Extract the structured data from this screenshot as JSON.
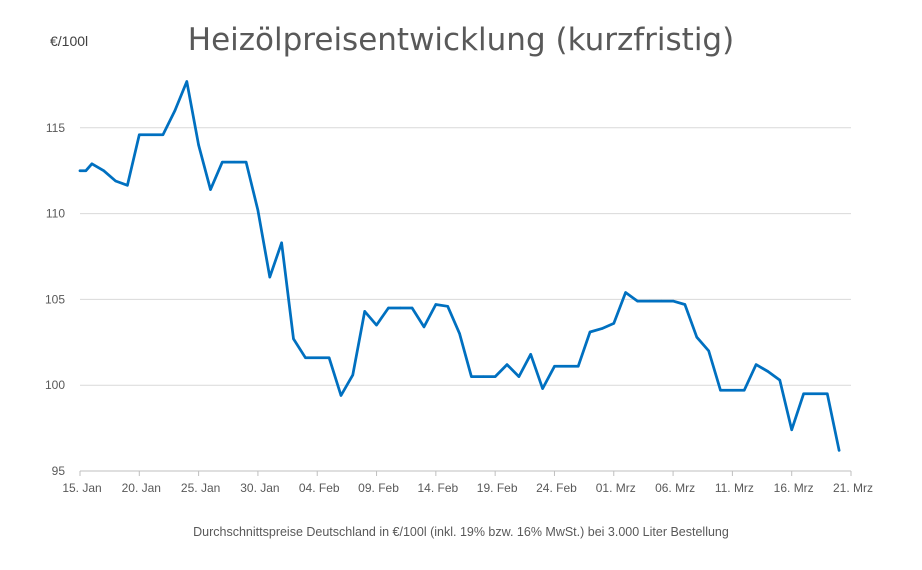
{
  "chart_data": {
    "type": "line",
    "title": "Heizölpreisentwicklung (kurzfristig)",
    "ylabel": "€/100l",
    "footnote": "Durchschnittspreise Deutschland in €/100l (inkl. 19% bzw. 16%  MwSt.) bei 3.000 Liter Bestellung",
    "ylim": [
      95,
      120
    ],
    "yticks": [
      95,
      100,
      105,
      110,
      115
    ],
    "grid": "horizontal",
    "line_color": "#0070C0",
    "x_ticks": [
      {
        "label": "15. Jan",
        "x": "2021-01-15"
      },
      {
        "label": "20. Jan",
        "x": "2021-01-20"
      },
      {
        "label": "25. Jan",
        "x": "2021-01-25"
      },
      {
        "label": "30. Jan",
        "x": "2021-01-30"
      },
      {
        "label": "04. Feb",
        "x": "2021-02-04"
      },
      {
        "label": "09. Feb",
        "x": "2021-02-09"
      },
      {
        "label": "14. Feb",
        "x": "2021-02-14"
      },
      {
        "label": "19. Feb",
        "x": "2021-02-19"
      },
      {
        "label": "24. Feb",
        "x": "2021-02-24"
      },
      {
        "label": "01. Mrz",
        "x": "2021-03-01"
      },
      {
        "label": "06. Mrz",
        "x": "2021-03-06"
      },
      {
        "label": "11. Mrz",
        "x": "2021-03-11"
      },
      {
        "label": "16. Mrz",
        "x": "2021-03-16"
      },
      {
        "label": "21. Mrz",
        "x": "2021-03-21"
      }
    ],
    "series": [
      {
        "points": [
          [
            "2021-01-15",
            112.5
          ],
          [
            "2021-01-15T12:00",
            112.5
          ],
          [
            "2021-01-16",
            112.9
          ],
          [
            "2021-01-17",
            112.5
          ],
          [
            "2021-01-18",
            111.9
          ],
          [
            "2021-01-19",
            111.65
          ],
          [
            "2021-01-20",
            114.6
          ],
          [
            "2021-01-21",
            114.6
          ],
          [
            "2021-01-22",
            114.6
          ],
          [
            "2021-01-23",
            116.0
          ],
          [
            "2021-01-24",
            117.7
          ],
          [
            "2021-01-25",
            114.0
          ],
          [
            "2021-01-26",
            111.4
          ],
          [
            "2021-01-27",
            113.0
          ],
          [
            "2021-01-28",
            113.0
          ],
          [
            "2021-01-29",
            113.0
          ],
          [
            "2021-01-30",
            110.2
          ],
          [
            "2021-01-31",
            106.3
          ],
          [
            "2021-02-01",
            108.3
          ],
          [
            "2021-02-02",
            102.7
          ],
          [
            "2021-02-03",
            101.6
          ],
          [
            "2021-02-04",
            101.6
          ],
          [
            "2021-02-05",
            101.6
          ],
          [
            "2021-02-06",
            99.4
          ],
          [
            "2021-02-07",
            100.6
          ],
          [
            "2021-02-08",
            104.3
          ],
          [
            "2021-02-09",
            103.5
          ],
          [
            "2021-02-10",
            104.5
          ],
          [
            "2021-02-11",
            104.5
          ],
          [
            "2021-02-12",
            104.5
          ],
          [
            "2021-02-13",
            103.4
          ],
          [
            "2021-02-14",
            104.7
          ],
          [
            "2021-02-15",
            104.6
          ],
          [
            "2021-02-16",
            103.0
          ],
          [
            "2021-02-17",
            100.5
          ],
          [
            "2021-02-18",
            100.5
          ],
          [
            "2021-02-19",
            100.5
          ],
          [
            "2021-02-20",
            101.2
          ],
          [
            "2021-02-21",
            100.5
          ],
          [
            "2021-02-22",
            101.8
          ],
          [
            "2021-02-23",
            99.8
          ],
          [
            "2021-02-24",
            101.1
          ],
          [
            "2021-02-25",
            101.1
          ],
          [
            "2021-02-26",
            101.1
          ],
          [
            "2021-02-27",
            103.1
          ],
          [
            "2021-02-28",
            103.3
          ],
          [
            "2021-03-01",
            103.6
          ],
          [
            "2021-03-02",
            105.4
          ],
          [
            "2021-03-03",
            104.9
          ],
          [
            "2021-03-04",
            104.9
          ],
          [
            "2021-03-05",
            104.9
          ],
          [
            "2021-03-06",
            104.9
          ],
          [
            "2021-03-07",
            104.7
          ],
          [
            "2021-03-08",
            102.8
          ],
          [
            "2021-03-09",
            102.0
          ],
          [
            "2021-03-10",
            99.7
          ],
          [
            "2021-03-11",
            99.7
          ],
          [
            "2021-03-12",
            99.7
          ],
          [
            "2021-03-13",
            101.2
          ],
          [
            "2021-03-14",
            100.8
          ],
          [
            "2021-03-15",
            100.3
          ],
          [
            "2021-03-16",
            97.4
          ],
          [
            "2021-03-17",
            99.5
          ],
          [
            "2021-03-18",
            99.5
          ],
          [
            "2021-03-19",
            99.5
          ],
          [
            "2021-03-20",
            96.2
          ]
        ]
      }
    ]
  }
}
